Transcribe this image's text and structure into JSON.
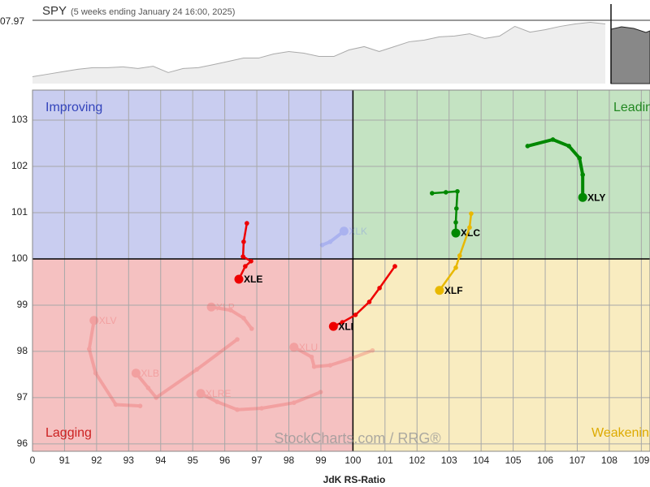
{
  "chart_data": [
    {
      "type": "line",
      "title": "SPY",
      "subtitle": "(5 weeks ending January 24 16:00, 2025)",
      "price_label": "07.97",
      "color": "#aaaaaa",
      "ylim": [
        577,
        608
      ],
      "values": [
        580.2,
        581.4,
        582.6,
        583.8,
        584.6,
        584.6,
        585.0,
        584.2,
        585.3,
        582.2,
        584.2,
        584.6,
        586.1,
        587.7,
        589.3,
        589.3,
        591.3,
        592.5,
        591.7,
        590.1,
        590.1,
        593.3,
        594.9,
        592.5,
        594.9,
        597.3,
        598.1,
        599.7,
        600.1,
        601.2,
        598.9,
        600.1,
        604.8,
        602.0,
        603.2,
        604.8,
        606.0,
        606.8,
        606.0
      ]
    },
    {
      "type": "rrg",
      "x_label": "JdK RS-Ratio",
      "watermark": "StockCharts.com / RRG®",
      "center": [
        100,
        100
      ],
      "xlim": [
        90,
        109.27
      ],
      "ylim": [
        95.84,
        103.65
      ],
      "xticks": [
        {
          "value": 90,
          "label": "0"
        },
        91,
        92,
        93,
        94,
        95,
        96,
        97,
        98,
        99,
        100,
        101,
        102,
        103,
        104,
        105,
        106,
        107,
        108,
        109
      ],
      "yticks": [
        96,
        97,
        98,
        99,
        100,
        101,
        102,
        103
      ],
      "quadrants": [
        {
          "name": "Improving",
          "color": "#c9cdf0",
          "text_color": "#3344bb"
        },
        {
          "name": "Leading",
          "color": "#c4e3c2",
          "text_color": "#228822"
        },
        {
          "name": "Lagging",
          "color": "#f5c1c1",
          "text_color": "#cc2222"
        },
        {
          "name": "Weakening",
          "color": "#f9ecc0",
          "text_color": "#ddaa00"
        }
      ],
      "series": [
        {
          "name": "XLK",
          "color": "#6677ee",
          "opacity": 0.3,
          "x": [
            99.04,
            99.29,
            99.72
          ],
          "values": [
            100.3,
            100.37,
            100.6
          ]
        },
        {
          "name": "XLP",
          "color": "#ee5555",
          "opacity": 0.3,
          "x": [
            96.84,
            96.59,
            96.19,
            95.58
          ],
          "values": [
            98.49,
            98.72,
            98.89,
            98.96
          ]
        },
        {
          "name": "XLU",
          "color": "#ee5555",
          "opacity": 0.3,
          "x": [
            100.61,
            99.92,
            99.29,
            98.79,
            98.71,
            98.16
          ],
          "values": [
            98.02,
            97.84,
            97.7,
            97.67,
            97.88,
            98.09
          ]
        },
        {
          "name": "XLV",
          "color": "#ee5555",
          "opacity": 0.3,
          "x": [
            93.36,
            92.6,
            91.97,
            91.77,
            91.92
          ],
          "values": [
            96.82,
            96.85,
            97.53,
            98.05,
            98.67
          ]
        },
        {
          "name": "XLB",
          "color": "#ee5555",
          "opacity": 0.3,
          "x": [
            96.39,
            95.13,
            93.86,
            93.61,
            93.23
          ],
          "values": [
            98.26,
            97.61,
            97.0,
            97.21,
            97.53
          ]
        },
        {
          "name": "XLRE",
          "color": "#ee5555",
          "opacity": 0.3,
          "x": [
            98.99,
            98.16,
            97.15,
            96.39,
            95.76,
            95.25
          ],
          "values": [
            97.12,
            96.89,
            96.77,
            96.74,
            96.91,
            97.09
          ]
        },
        {
          "name": "XLY",
          "color": "#008800",
          "opacity": 1,
          "x": [
            105.45,
            106.24,
            106.74,
            107.07,
            107.17,
            107.17
          ],
          "values": [
            102.44,
            102.58,
            102.44,
            102.18,
            101.82,
            101.33
          ]
        },
        {
          "name": "XLC",
          "color": "#008800",
          "opacity": 1,
          "x": [
            102.47,
            102.9,
            103.26,
            103.23,
            103.21,
            103.21
          ],
          "values": [
            101.42,
            101.44,
            101.46,
            101.09,
            100.79,
            100.56
          ]
        },
        {
          "name": "XLF",
          "color": "#e8b800",
          "opacity": 1,
          "x": [
            103.69,
            103.64,
            103.33,
            103.21,
            102.7
          ],
          "values": [
            100.98,
            100.68,
            100.07,
            99.81,
            99.32
          ]
        },
        {
          "name": "XLE",
          "color": "#ee0000",
          "opacity": 1,
          "x": [
            96.69,
            96.59,
            96.57,
            96.82,
            96.64,
            96.44
          ],
          "values": [
            100.77,
            100.37,
            100.05,
            99.95,
            99.84,
            99.56
          ]
        },
        {
          "name": "XLI",
          "color": "#ee0000",
          "opacity": 1,
          "x": [
            101.31,
            100.83,
            100.51,
            100.08,
            99.67,
            99.39
          ],
          "values": [
            99.84,
            99.37,
            99.07,
            98.79,
            98.63,
            98.54
          ]
        }
      ]
    }
  ]
}
